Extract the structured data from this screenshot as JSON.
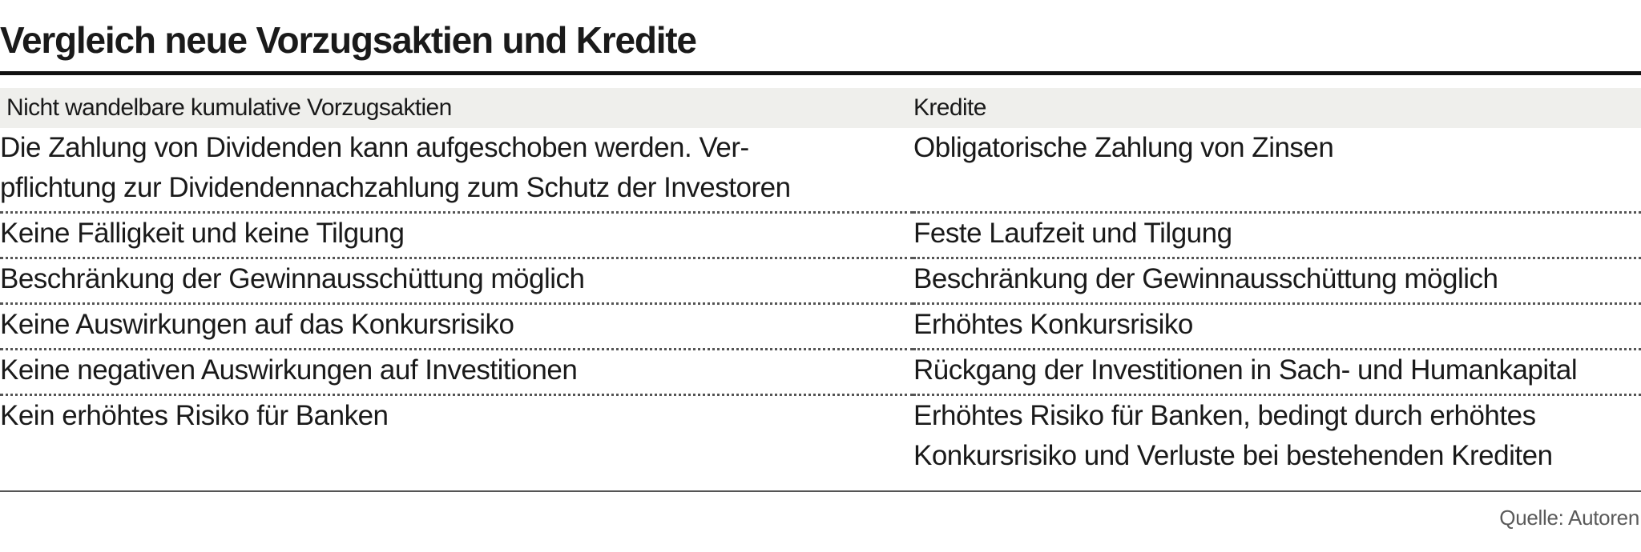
{
  "title": "Vergleich neue Vorzugsaktien und Kredite",
  "table": {
    "headers": [
      "Nicht wandelbare kumulative Vorzugsaktien",
      "Kredite"
    ],
    "rows": [
      [
        "Die Zahlung von Dividenden kann aufgeschoben werden. Ver-\npflichtung zur Dividendennachzahlung zum Schutz der Investoren",
        "Obligatorische Zahlung von Zinsen"
      ],
      [
        "Keine Fälligkeit und keine Tilgung",
        "Feste Laufzeit und Tilgung"
      ],
      [
        "Beschränkung der Gewinnausschüttung möglich",
        "Beschränkung der Gewinnausschüttung möglich"
      ],
      [
        "Keine Auswirkungen auf das Konkursrisiko",
        "Erhöhtes Konkursrisiko"
      ],
      [
        "Keine negativen Auswirkungen auf Investitionen",
        "Rückgang der Investitionen in Sach- und Humankapital"
      ],
      [
        "Kein erhöhtes Risiko für Banken",
        "Erhöhtes Risiko für Banken, bedingt durch erhöhtes\nKonkursrisiko und Verluste bei bestehenden Krediten"
      ]
    ]
  },
  "source": "Quelle: Autoren",
  "colors": {
    "header_background": "#efefec",
    "rule": "#111111",
    "text": "#1a1a1a"
  }
}
